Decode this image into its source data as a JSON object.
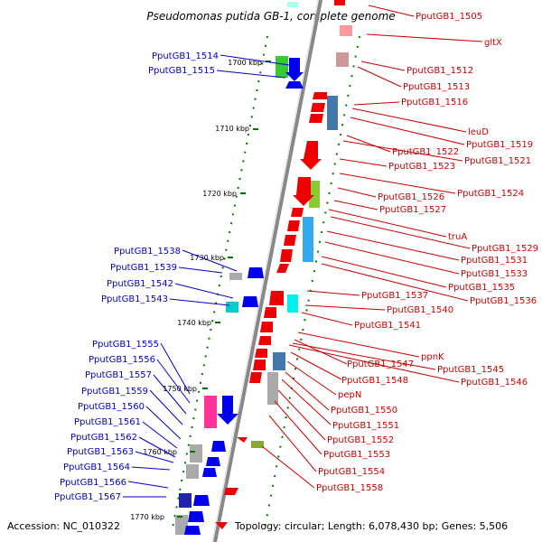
{
  "header": {
    "title": "Pseudomonas putida GB-1, complete genome"
  },
  "footer": {
    "accession": "Accession: NC_010322",
    "topology": "Topology: circular; Length: 6,078,430 bp; Genes: 5,506"
  },
  "ticks": [
    {
      "label": "1700 kbp",
      "kb": 1700
    },
    {
      "label": "1710 kbp",
      "kb": 1710
    },
    {
      "label": "1720 kbp",
      "kb": 1720
    },
    {
      "label": "1730 kbp",
      "kb": 1730
    },
    {
      "label": "1740 kbp",
      "kb": 1740
    },
    {
      "label": "1750 kbp",
      "kb": 1750
    },
    {
      "label": "1760 kbp",
      "kb": 1760
    },
    {
      "label": "1770 kbp",
      "kb": 1770
    }
  ],
  "genes_left": [
    "PputGB1_1514",
    "PputGB1_1515",
    "PputGB1_1538",
    "PputGB1_1539",
    "PputGB1_1542",
    "PputGB1_1543",
    "PputGB1_1555",
    "PputGB1_1556",
    "PputGB1_1557",
    "PputGB1_1559",
    "PputGB1_1560",
    "PputGB1_1561",
    "PputGB1_1562",
    "PputGB1_1563",
    "PputGB1_1564",
    "PputGB1_1566",
    "PputGB1_1567"
  ],
  "genes_right": [
    "PputGB1_1505",
    "gltX",
    "PputGB1_1512",
    "PputGB1_1513",
    "PputGB1_1516",
    "leuD",
    "PputGB1_1519",
    "PputGB1_1522",
    "PputGB1_1521",
    "PputGB1_1523",
    "PputGB1_1524",
    "PputGB1_1526",
    "PputGB1_1527",
    "truA",
    "PputGB1_1529",
    "PputGB1_1531",
    "PputGB1_1533",
    "PputGB1_1535",
    "PputGB1_1536",
    "PputGB1_1537",
    "PputGB1_1540",
    "PputGB1_1541",
    "ppnK",
    "PputGB1_1547",
    "PputGB1_1545",
    "PputGB1_1548",
    "PputGB1_1546",
    "pepN",
    "PputGB1_1550",
    "PputGB1_1551",
    "PputGB1_1552",
    "PputGB1_1553",
    "PputGB1_1554",
    "PputGB1_1558"
  ],
  "colors": {
    "forward_strand": "#0000ee",
    "reverse_strand": "#ee0000",
    "backbone": "#888888",
    "tick": "#007700"
  }
}
